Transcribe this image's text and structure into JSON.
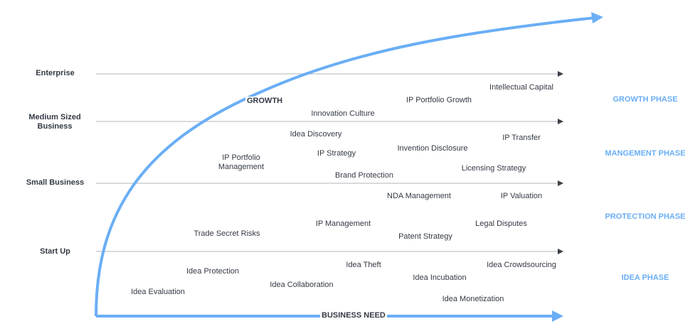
{
  "levels": {
    "enterprise": "Enterprise",
    "medium": "Medium Sized Business",
    "small": "Small Business",
    "startup": "Start Up"
  },
  "axis": {
    "growth": "GROWTH",
    "business_need": "BUSINESS NEED"
  },
  "phases": {
    "growth": "GROWTH PHASE",
    "management": "MANGEMENT PHASE",
    "protection": "PROTECTION PHASE",
    "idea": "IDEA PHASE"
  },
  "items": {
    "intellectual_capital": "Intellectual Capital",
    "ip_portfolio_growth": "IP Portfolio Growth",
    "innovation_culture": "Innovation Culture",
    "idea_discovery": "Idea Discovery",
    "ip_transfer": "IP Transfer",
    "ip_portfolio_management": "IP Portfolio Management",
    "ip_strategy": "IP Strategy",
    "invention_disclosure": "Invention Disclosure",
    "licensing_strategy": "Licensing Strategy",
    "brand_protection": "Brand Protection",
    "nda_management": "NDA Management",
    "ip_valuation": "IP Valuation",
    "trade_secret_risks": "Trade Secret Risks",
    "ip_management": "IP Management",
    "legal_disputes": "Legal Disputes",
    "patent_strategy": "Patent Strategy",
    "idea_theft": "Idea Theft",
    "idea_crowdsourcing": "Idea Crowdsourcing",
    "idea_protection": "Idea Protection",
    "idea_incubation": "Idea Incubation",
    "idea_collaboration": "Idea Collaboration",
    "idea_evaluation": "Idea Evaluation",
    "idea_monetization": "Idea Monetization"
  },
  "colors": {
    "curve": "#6aaef5",
    "phase_text": "#6aaef5",
    "guide_line": "#b0b4ba",
    "arrowhead": "#3a3f47"
  }
}
